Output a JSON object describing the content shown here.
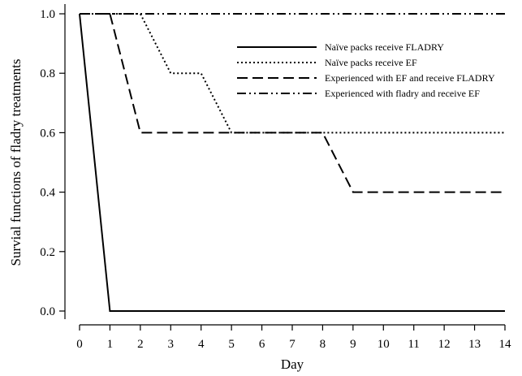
{
  "chart_data": {
    "type": "line",
    "xlabel": "Day",
    "ylabel": "Survial functions of fladry treatments",
    "xlim": [
      0,
      14
    ],
    "ylim": [
      0.0,
      1.0
    ],
    "x_ticks": [
      "0",
      "1",
      "2",
      "3",
      "4",
      "5",
      "6",
      "7",
      "8",
      "9",
      "10",
      "11",
      "12",
      "13",
      "14"
    ],
    "y_ticks": [
      "0.0",
      "0.2",
      "0.4",
      "0.6",
      "0.8",
      "1.0"
    ],
    "grid": false,
    "legend_position": "top-right",
    "series": [
      {
        "name": "Naïve packs receive FLADRY",
        "style": "solid",
        "points": [
          [
            0,
            1.0
          ],
          [
            1,
            0.0
          ],
          [
            14,
            0.0
          ]
        ]
      },
      {
        "name": "Naïve packs receive EF",
        "style": "dotted",
        "points": [
          [
            0,
            1.0
          ],
          [
            2,
            1.0
          ],
          [
            3,
            0.8
          ],
          [
            4,
            0.8
          ],
          [
            5,
            0.6
          ],
          [
            14,
            0.6
          ]
        ]
      },
      {
        "name": "Experienced with EF and receive FLADRY",
        "style": "dashed",
        "points": [
          [
            0,
            1.0
          ],
          [
            1,
            1.0
          ],
          [
            2,
            0.6
          ],
          [
            8,
            0.6
          ],
          [
            9,
            0.4
          ],
          [
            14,
            0.4
          ]
        ]
      },
      {
        "name": "Experienced with fladry and receive EF",
        "style": "dashdotdot",
        "points": [
          [
            0,
            1.0
          ],
          [
            14,
            1.0
          ]
        ]
      }
    ]
  }
}
